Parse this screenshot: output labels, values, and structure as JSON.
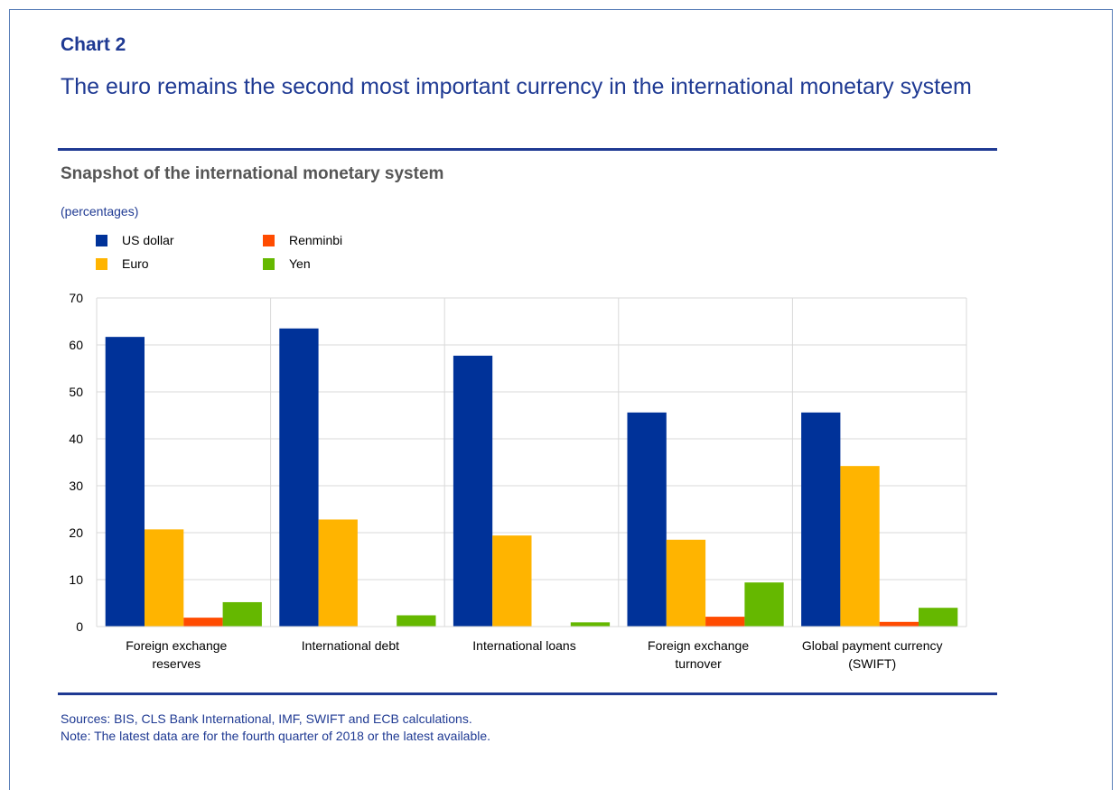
{
  "header": {
    "chart_label": "Chart 2",
    "title": "The euro remains the second most important currency in the international monetary system"
  },
  "subtitle": "Snapshot of the international monetary system",
  "unit": "(percentages)",
  "footer": {
    "sources": "Sources: BIS, CLS Bank International, IMF, SWIFT and ECB calculations.",
    "note": "Note: The latest data are for the fourth quarter of 2018 or the latest available."
  },
  "colors": {
    "us_dollar": "#003299",
    "euro": "#ffb400",
    "renminbi": "#ff4b00",
    "yen": "#65b800"
  },
  "chart_data": {
    "type": "bar",
    "categories": [
      [
        "Foreign exchange",
        "reserves"
      ],
      [
        "International debt"
      ],
      [
        "International loans"
      ],
      [
        "Foreign exchange",
        "turnover"
      ],
      [
        "Global payment currency",
        "(SWIFT)"
      ]
    ],
    "series": [
      {
        "name": "US dollar",
        "color": "#003299",
        "values": [
          61.7,
          63.5,
          57.7,
          45.6,
          45.6
        ]
      },
      {
        "name": "Euro",
        "color": "#ffb400",
        "values": [
          20.7,
          22.8,
          19.4,
          18.5,
          34.2
        ]
      },
      {
        "name": "Renminbi",
        "color": "#ff4b00",
        "values": [
          1.9,
          0,
          0,
          2.1,
          1.0
        ]
      },
      {
        "name": "Yen",
        "color": "#65b800",
        "values": [
          5.2,
          2.4,
          0.9,
          9.4,
          4.0
        ]
      }
    ],
    "ylim": [
      0,
      70
    ],
    "yticks": [
      0,
      10,
      20,
      30,
      40,
      50,
      60,
      70
    ],
    "grid": true,
    "legend_position": "top-left"
  }
}
